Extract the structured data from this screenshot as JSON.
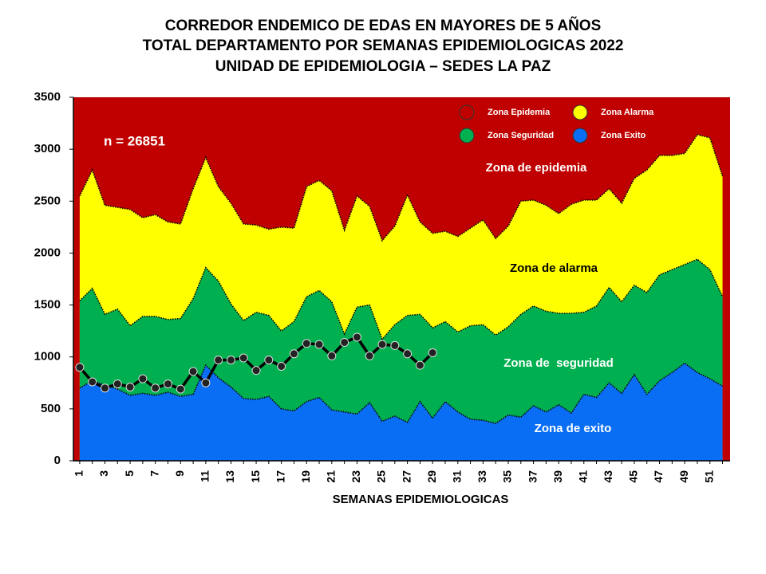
{
  "chart_data": {
    "type": "corridor",
    "title": [
      "CORREDOR ENDEMICO DE EDAS EN MAYORES DE 5 AÑOS",
      "TOTAL DEPARTAMENTO POR SEMANAS EPIDEMIOLOGICAS 2022",
      "UNIDAD DE EPIDEMIOLOGIA – SEDES LA PAZ"
    ],
    "xlabel": "SEMANAS EPIDEMIOLOGICAS",
    "x": [
      1,
      2,
      3,
      4,
      5,
      6,
      7,
      8,
      9,
      10,
      11,
      12,
      13,
      14,
      15,
      16,
      17,
      18,
      19,
      20,
      21,
      22,
      23,
      24,
      25,
      26,
      27,
      28,
      29,
      30,
      31,
      32,
      33,
      34,
      35,
      36,
      37,
      38,
      39,
      40,
      41,
      42,
      43,
      44,
      45,
      46,
      47,
      48,
      49,
      50,
      51,
      52
    ],
    "xlim": [
      0.5,
      52.6
    ],
    "xticks": [
      1,
      3,
      5,
      7,
      9,
      11,
      13,
      15,
      17,
      19,
      21,
      23,
      25,
      27,
      29,
      31,
      33,
      35,
      37,
      39,
      41,
      43,
      45,
      47,
      49,
      51
    ],
    "ylim": [
      0,
      3500
    ],
    "yticks": [
      0,
      500,
      1000,
      1500,
      2000,
      2500,
      3000,
      3500
    ],
    "background_color": "#c00000",
    "series": [
      {
        "name": "Zona Exito",
        "color": "#0a6ef5",
        "values": [
          700,
          770,
          730,
          690,
          630,
          650,
          630,
          660,
          620,
          640,
          920,
          800,
          710,
          600,
          590,
          620,
          500,
          480,
          570,
          610,
          490,
          470,
          450,
          560,
          380,
          430,
          370,
          570,
          410,
          570,
          470,
          400,
          390,
          360,
          440,
          420,
          530,
          470,
          540,
          460,
          640,
          610,
          750,
          650,
          830,
          640,
          770,
          850,
          940,
          850,
          790,
          720
        ]
      },
      {
        "name": "Zona Seguridad",
        "color": "#00b050",
        "values": [
          1540,
          1660,
          1410,
          1460,
          1300,
          1390,
          1390,
          1360,
          1370,
          1560,
          1860,
          1730,
          1510,
          1350,
          1430,
          1400,
          1250,
          1340,
          1580,
          1640,
          1530,
          1220,
          1480,
          1500,
          1170,
          1310,
          1400,
          1410,
          1280,
          1340,
          1240,
          1300,
          1310,
          1210,
          1290,
          1410,
          1490,
          1440,
          1420,
          1420,
          1430,
          1490,
          1670,
          1530,
          1690,
          1620,
          1790,
          1840,
          1890,
          1940,
          1840,
          1580
        ]
      },
      {
        "name": "Zona Alarma",
        "color": "#ffff00",
        "values": [
          2550,
          2800,
          2460,
          2440,
          2420,
          2340,
          2370,
          2300,
          2280,
          2620,
          2920,
          2640,
          2480,
          2280,
          2270,
          2230,
          2250,
          2240,
          2640,
          2700,
          2600,
          2220,
          2550,
          2450,
          2120,
          2260,
          2560,
          2300,
          2190,
          2210,
          2160,
          2240,
          2320,
          2140,
          2260,
          2500,
          2510,
          2460,
          2380,
          2470,
          2510,
          2510,
          2620,
          2480,
          2720,
          2800,
          2940,
          2940,
          2960,
          3140,
          3110,
          2740
        ]
      }
    ],
    "observed": {
      "color": "#000000",
      "values": [
        900,
        760,
        700,
        740,
        710,
        790,
        700,
        740,
        690,
        860,
        750,
        970,
        970,
        990,
        870,
        970,
        910,
        1030,
        1130,
        1120,
        1010,
        1140,
        1190,
        1010,
        1120,
        1110,
        1030,
        920,
        1040,
        null,
        null,
        null,
        null,
        null,
        null,
        null,
        null,
        null,
        null,
        null,
        null,
        null,
        null,
        null,
        null,
        null,
        null,
        null,
        null,
        null,
        null,
        null
      ]
    },
    "legend": [
      {
        "name": "Zona Epidemia",
        "color": "#c00000"
      },
      {
        "name": "Zona Alarma",
        "color": "#ffff00"
      },
      {
        "name": "Zona Seguridad",
        "color": "#00b050"
      },
      {
        "name": "Zona Exito",
        "color": "#0a6ef5"
      }
    ],
    "annotations": [
      "n = 26851",
      "Zona de epidemia",
      "Zona de alarma",
      "Zona de  seguridad",
      "Zona de exito"
    ]
  }
}
